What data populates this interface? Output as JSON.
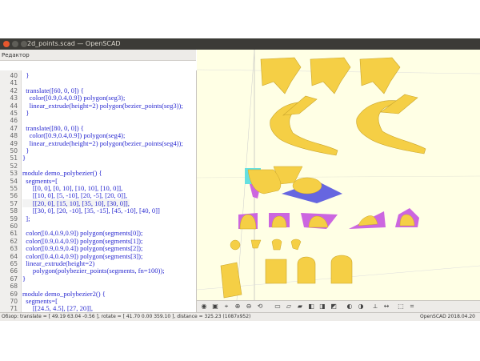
{
  "window": {
    "title": "2d_points.scad — OpenSCAD"
  },
  "editor_panel": {
    "label": "Редактор"
  },
  "editor": {
    "lines": [
      {
        "n": "40",
        "text": "  }"
      },
      {
        "n": "41",
        "text": ""
      },
      {
        "n": "42",
        "text": "  translate([60, 0, 0]) {"
      },
      {
        "n": "43",
        "text": "    color([0.9,0.4,0.9]) polygon(seg3);"
      },
      {
        "n": "44",
        "text": "    linear_extrude(height=2) polygon(bezier_points(seg3));"
      },
      {
        "n": "45",
        "text": "  }"
      },
      {
        "n": "46",
        "text": ""
      },
      {
        "n": "47",
        "text": "  translate([80, 0, 0]) {"
      },
      {
        "n": "48",
        "text": "    color([0.9,0.4,0.9]) polygon(seg4);"
      },
      {
        "n": "49",
        "text": "    linear_extrude(height=2) polygon(bezier_points(seg4));"
      },
      {
        "n": "50",
        "text": "  }"
      },
      {
        "n": "51",
        "text": "}"
      },
      {
        "n": "52",
        "text": ""
      },
      {
        "n": "53",
        "text": "module demo_polybezier() {"
      },
      {
        "n": "54",
        "text": "  segments=["
      },
      {
        "n": "55",
        "text": "      [[0, 0], [0, 10], [10, 10], [10, 0]],"
      },
      {
        "n": "56",
        "text": "      [[10, 0], [5, -10], [20, -5], [20, 0]],"
      },
      {
        "n": "57",
        "text": "      [[20, 0], [15, 10], [35, 10], [30, 0]],"
      },
      {
        "n": "58",
        "text": "      [[30, 0], [20, -10], [35, -15], [45, -10], [40, 0]]"
      },
      {
        "n": "59",
        "text": "  ];"
      },
      {
        "n": "60",
        "text": ""
      },
      {
        "n": "61",
        "text": "  color([0.4,0.9,0.9]) polygon(segments[0]);"
      },
      {
        "n": "62",
        "text": "  color([0.9,0.4,0.9]) polygon(segments[1]);"
      },
      {
        "n": "63",
        "text": "  color([0.9,0.9,0.4]) polygon(segments[2]);"
      },
      {
        "n": "64",
        "text": "  color([0.4,0.4,0.9]) polygon(segments[3]);"
      },
      {
        "n": "65",
        "text": "  linear_extrude(height=2)"
      },
      {
        "n": "66",
        "text": "      polygon(polybezier_points(segments, fn=100));"
      },
      {
        "n": "67",
        "text": "}"
      },
      {
        "n": "68",
        "text": ""
      },
      {
        "n": "69",
        "text": "module demo_polybezier2() {"
      },
      {
        "n": "70",
        "text": "  segments=["
      },
      {
        "n": "71",
        "text": "      [[24.5, 4.5], [27, 20]],"
      }
    ]
  },
  "statusbar": {
    "left": "Обзор: translate = [ 49.19 63.04 -0.56 ], rotate = [ 41.70 0.00 359.10 ], distance = 325.23 (1087x952)",
    "right": "OpenSCAD 2018.04.20"
  },
  "colors": {
    "shape": "#f5cf45",
    "magenta": "#cc66e0",
    "cyan": "#66e0e0",
    "blue": "#6666e0",
    "viewport_bg": "#ffffe5"
  }
}
